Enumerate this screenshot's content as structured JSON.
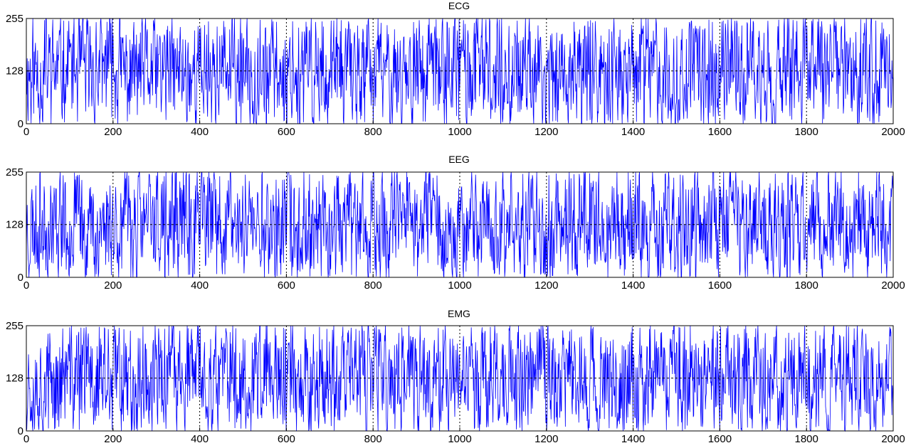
{
  "chart_data": [
    {
      "type": "line",
      "title": "ECG",
      "xlabel": "",
      "ylabel": "",
      "xlim": [
        0,
        2000
      ],
      "ylim": [
        0,
        255
      ],
      "x_ticks": [
        "0",
        "200",
        "400",
        "600",
        "800",
        "1000",
        "1200",
        "1400",
        "1600",
        "1800",
        "2000"
      ],
      "y_ticks": [
        "0",
        "128",
        "255"
      ],
      "grid": true,
      "series_color": "#0000ff",
      "signal": {
        "n_samples": 2000,
        "min": 0,
        "max": 255,
        "mean": 128,
        "seed": 11
      }
    },
    {
      "type": "line",
      "title": "EEG",
      "xlabel": "",
      "ylabel": "",
      "xlim": [
        0,
        2000
      ],
      "ylim": [
        0,
        255
      ],
      "x_ticks": [
        "0",
        "200",
        "400",
        "600",
        "800",
        "1000",
        "1200",
        "1400",
        "1600",
        "1800",
        "2000"
      ],
      "y_ticks": [
        "0",
        "128",
        "255"
      ],
      "grid": true,
      "series_color": "#0000ff",
      "signal": {
        "n_samples": 2000,
        "min": 0,
        "max": 255,
        "mean": 128,
        "seed": 23
      }
    },
    {
      "type": "line",
      "title": "EMG",
      "xlabel": "",
      "ylabel": "",
      "xlim": [
        0,
        2000
      ],
      "ylim": [
        0,
        255
      ],
      "x_ticks": [
        "0",
        "200",
        "400",
        "600",
        "800",
        "1000",
        "1200",
        "1400",
        "1600",
        "1800",
        "2000"
      ],
      "y_ticks": [
        "0",
        "128",
        "255"
      ],
      "grid": true,
      "series_color": "#0000ff",
      "signal": {
        "n_samples": 2000,
        "min": 0,
        "max": 255,
        "mean": 128,
        "seed": 37
      }
    }
  ]
}
